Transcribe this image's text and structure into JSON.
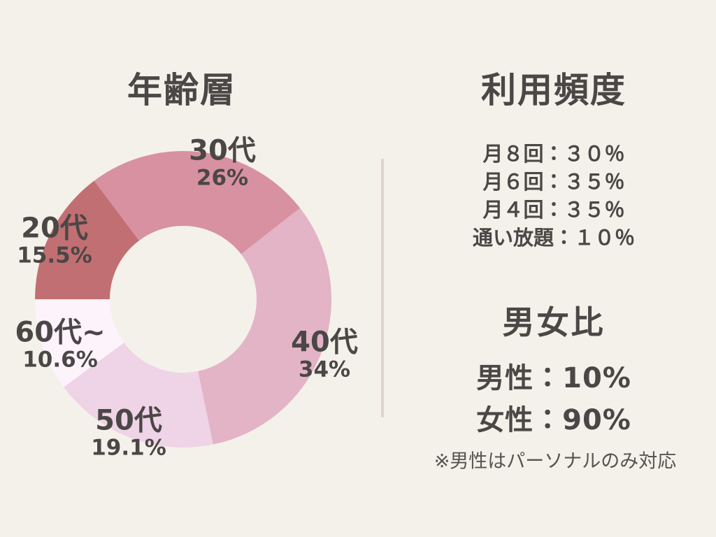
{
  "colors": {
    "background": "#f4f1ea",
    "text": "#4a4746",
    "divider": "#ded3cd",
    "donut_hole": "#f4f1ea"
  },
  "age_chart": {
    "title": "年齢層",
    "start_angle_deg": -37,
    "segments": [
      {
        "label": "30代",
        "pct_text": "26%",
        "value": 26,
        "color": "#d891a0"
      },
      {
        "label": "40代",
        "pct_text": "34%",
        "value": 34,
        "color": "#e3b3c6"
      },
      {
        "label": "50代",
        "pct_text": "19.1%",
        "value": 19.1,
        "color": "#efd3e6"
      },
      {
        "label": "60代~",
        "pct_text": "10.6%",
        "value": 10.6,
        "color": "#fdf3fb"
      },
      {
        "label": "20代",
        "pct_text": "15.5%",
        "value": 15.5,
        "color": "#c16f72"
      }
    ]
  },
  "frequency": {
    "title": "利用頻度",
    "items": [
      "月８回：３０％",
      "月６回：３５％",
      "月４回：３５％",
      "通い放題：１０％"
    ]
  },
  "gender": {
    "title": "男女比",
    "male_line": "男性：10%",
    "female_line": "女性：90%",
    "note": "※男性はパーソナルのみ対応"
  },
  "chart_data": [
    {
      "type": "pie",
      "subtype": "donut",
      "title": "年齢層",
      "labels": [
        "30代",
        "40代",
        "50代",
        "60代~",
        "20代"
      ],
      "values": [
        26,
        34,
        19.1,
        10.6,
        15.5
      ],
      "value_labels": [
        "26%",
        "34%",
        "19.1%",
        "10.6%",
        "15.5%"
      ],
      "colors": [
        "#d891a0",
        "#e3b3c6",
        "#efd3e6",
        "#fdf3fb",
        "#c16f72"
      ],
      "start_angle_deg_from_north": -37,
      "direction": "clockwise",
      "legend_position": "around-chart",
      "grid": false
    },
    {
      "type": "table",
      "title": "利用頻度",
      "rows": [
        [
          "月８回",
          "３０％"
        ],
        [
          "月６回",
          "３５％"
        ],
        [
          "月４回",
          "３５％"
        ],
        [
          "通い放題",
          "１０％"
        ]
      ]
    },
    {
      "type": "table",
      "title": "男女比",
      "rows": [
        [
          "男性",
          "10%"
        ],
        [
          "女性",
          "90%"
        ]
      ],
      "annotations": [
        "※男性はパーソナルのみ対応"
      ]
    }
  ]
}
